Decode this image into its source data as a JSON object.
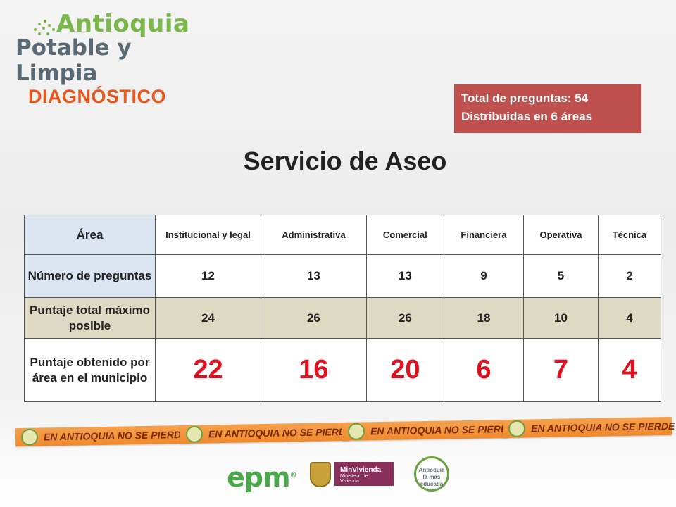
{
  "header": {
    "logo_line1": "Antioquia",
    "logo_line2": "Potable y Limpia"
  },
  "section_label": "DIAGNÓSTICO",
  "info_box": {
    "line1": "Total de preguntas: 54",
    "line2": "Distribuidas en 6 áreas"
  },
  "title": "Servicio de Aseo",
  "table": {
    "corner_header": "Área",
    "columns": [
      "Institucional y legal",
      "Administrativa",
      "Comercial",
      "Financiera",
      "Operativa",
      "Técnica"
    ],
    "rows": [
      {
        "label": "Número de preguntas",
        "values": [
          "12",
          "13",
          "13",
          "9",
          "5",
          "2"
        ]
      },
      {
        "label": "Puntaje total máximo posible",
        "values": [
          "24",
          "26",
          "26",
          "18",
          "10",
          "4"
        ]
      },
      {
        "label": "Puntaje obtenido por área en el municipio",
        "values": [
          "22",
          "16",
          "20",
          "6",
          "7",
          "4"
        ]
      }
    ]
  },
  "banner": {
    "slogan": "EN ANTIOQUIA NO SE PIERDE UN PESO"
  },
  "footer_logos": {
    "epm": "epm",
    "epm_mark": "®",
    "minvivienda": "MinVivienda",
    "minvivienda_sub": "Ministerio de Vivienda",
    "antioquia_educada": "Antioquia la más educada"
  },
  "colors": {
    "accent_orange": "#e8561c",
    "info_box_bg": "#c0504d",
    "header_blue": "#dbe5f1",
    "row_tan": "#ddd9c3",
    "score_red": "#e0101e"
  }
}
